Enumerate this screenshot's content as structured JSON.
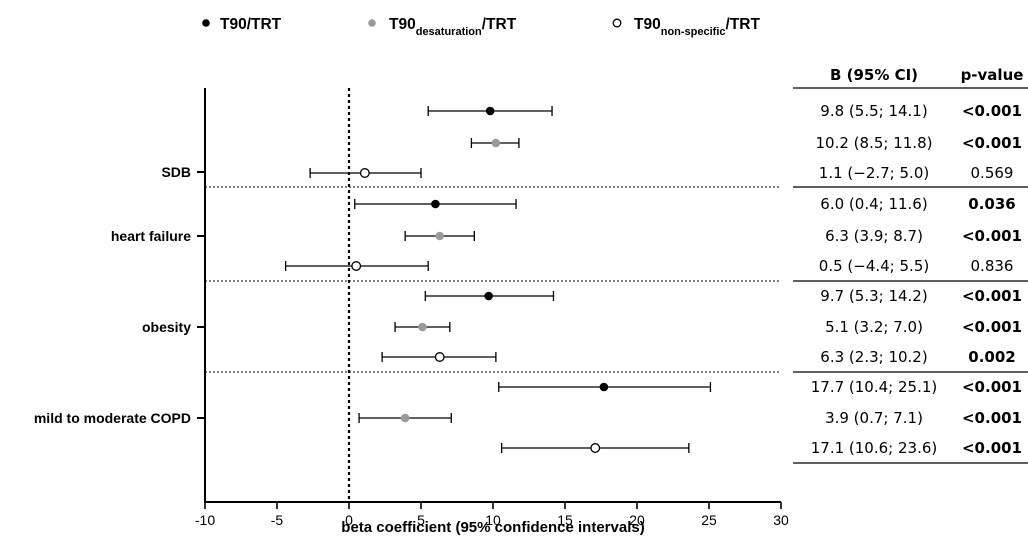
{
  "chart_data": {
    "type": "forest",
    "xlabel": "beta coefficient (95% confidence intervals)",
    "xlim": [
      -10,
      30
    ],
    "xticks": [
      -10,
      -5,
      0,
      5,
      10,
      15,
      20,
      25,
      30
    ],
    "reference_line": 0,
    "legend_position": "top",
    "series": [
      {
        "name_main": "T90",
        "name_sub": "",
        "name_suffix": "/TRT",
        "marker": "filled-black",
        "color": "#000000"
      },
      {
        "name_main": "T90",
        "name_sub": "desaturation",
        "name_suffix": "/TRT",
        "marker": "filled-gray",
        "color": "#9a9a9a"
      },
      {
        "name_main": "T90",
        "name_sub": "non-specific",
        "name_suffix": "/TRT",
        "marker": "open",
        "color": "#ffffff"
      }
    ],
    "table_headers": [
      "B (95% CI)",
      "p-value"
    ],
    "groups": [
      {
        "label": "SDB",
        "rows": [
          {
            "series": 0,
            "est": 9.8,
            "lo": 5.5,
            "hi": 14.1,
            "ci_text": "9.8 (5.5; 14.1)",
            "p": "<0.001",
            "bold": true
          },
          {
            "series": 1,
            "est": 10.2,
            "lo": 8.5,
            "hi": 11.8,
            "ci_text": "10.2 (8.5; 11.8)",
            "p": "<0.001",
            "bold": true
          },
          {
            "series": 2,
            "est": 1.1,
            "lo": -2.7,
            "hi": 5.0,
            "ci_text": "1.1 (−2.7; 5.0)",
            "p": "0.569",
            "bold": false
          }
        ]
      },
      {
        "label": "heart failure",
        "rows": [
          {
            "series": 0,
            "est": 6.0,
            "lo": 0.4,
            "hi": 11.6,
            "ci_text": "6.0 (0.4; 11.6)",
            "p": "0.036",
            "bold": true
          },
          {
            "series": 1,
            "est": 6.3,
            "lo": 3.9,
            "hi": 8.7,
            "ci_text": "6.3 (3.9; 8.7)",
            "p": "<0.001",
            "bold": true
          },
          {
            "series": 2,
            "est": 0.5,
            "lo": -4.4,
            "hi": 5.5,
            "ci_text": "0.5 (−4.4; 5.5)",
            "p": "0.836",
            "bold": false
          }
        ]
      },
      {
        "label": "obesity",
        "rows": [
          {
            "series": 0,
            "est": 9.7,
            "lo": 5.3,
            "hi": 14.2,
            "ci_text": "9.7 (5.3; 14.2)",
            "p": "<0.001",
            "bold": true
          },
          {
            "series": 1,
            "est": 5.1,
            "lo": 3.2,
            "hi": 7.0,
            "ci_text": "5.1 (3.2; 7.0)",
            "p": "<0.001",
            "bold": true
          },
          {
            "series": 2,
            "est": 6.3,
            "lo": 2.3,
            "hi": 10.2,
            "ci_text": "6.3 (2.3; 10.2)",
            "p": "0.002",
            "bold": true
          }
        ]
      },
      {
        "label": "mild to moderate COPD",
        "rows": [
          {
            "series": 0,
            "est": 17.7,
            "lo": 10.4,
            "hi": 25.1,
            "ci_text": "17.7 (10.4; 25.1)",
            "p": "<0.001",
            "bold": true
          },
          {
            "series": 1,
            "est": 3.9,
            "lo": 0.7,
            "hi": 7.1,
            "ci_text": "3.9 (0.7; 7.1)",
            "p": "<0.001",
            "bold": true
          },
          {
            "series": 2,
            "est": 17.1,
            "lo": 10.6,
            "hi": 23.6,
            "ci_text": "17.1 (10.6; 23.6)",
            "p": "<0.001",
            "bold": true
          }
        ]
      }
    ]
  }
}
